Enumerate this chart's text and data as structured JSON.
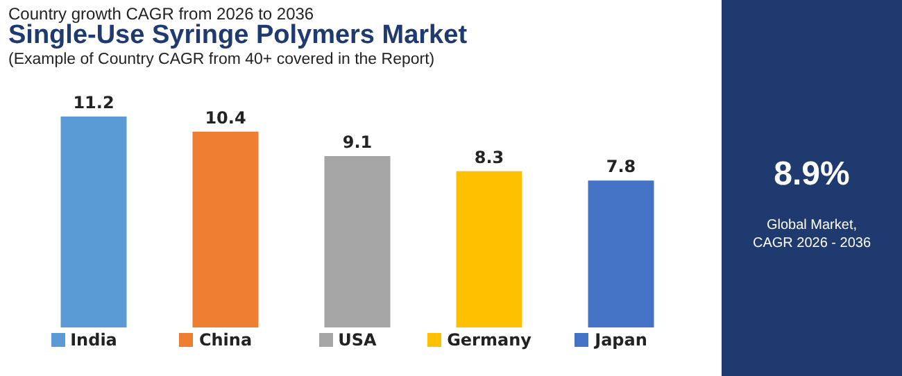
{
  "chart_data": {
    "type": "bar",
    "title": "Single-Use Syringe Polymers Market",
    "subtitle": "(Example of Country CAGR from 40+ covered in the Report)",
    "annotations": [
      "Country growth CAGR from 2026 to 2036",
      "8.9%",
      "Global Market,\nCAGR 2026 - 2036"
    ],
    "categories": [
      "India",
      "China",
      "USA",
      "Germany",
      "Japan"
    ],
    "values": [
      11.2,
      10.4,
      9.1,
      8.3,
      7.8
    ],
    "colors": [
      "#5b9bd5",
      "#ed7d31",
      "#a5a5a5",
      "#ffc000",
      "#4472c4"
    ],
    "data_labels": true
  }
}
